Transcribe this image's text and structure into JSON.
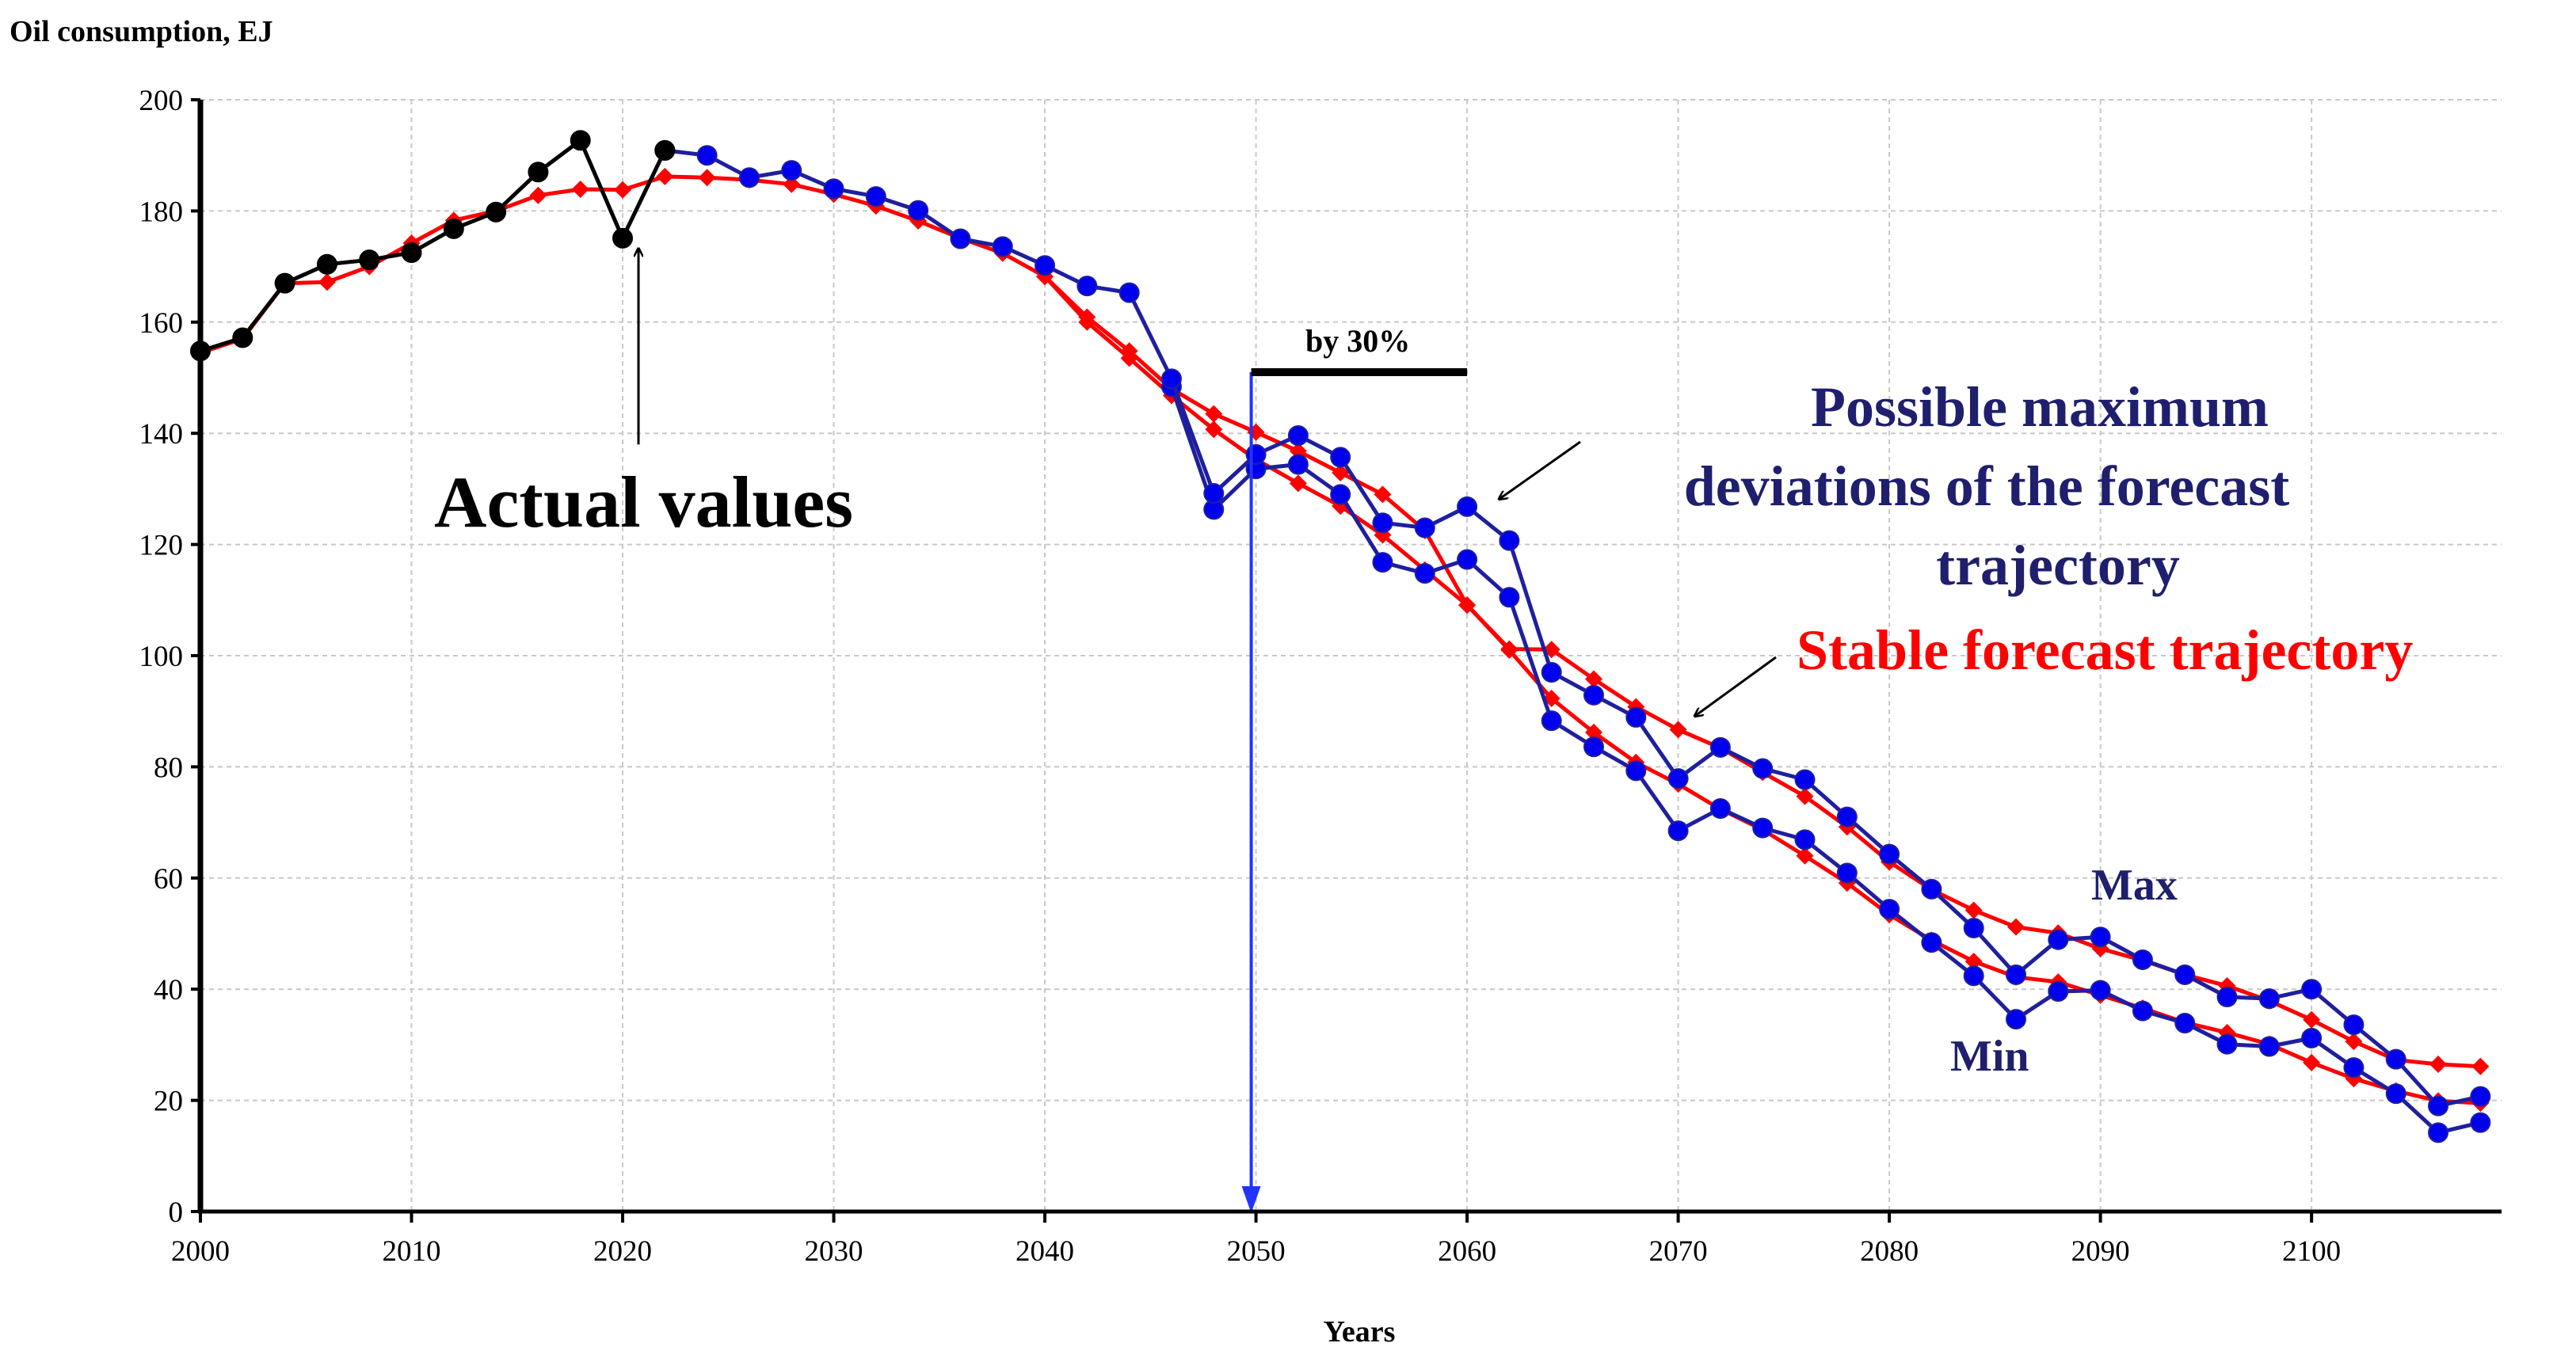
{
  "chart_data": {
    "type": "line",
    "title": "",
    "ylabel": "Oil consumption, EJ",
    "xlabel": "Years",
    "xlim": [
      2000,
      2109
    ],
    "ylim": [
      0,
      200
    ],
    "x_ticks": [
      2000,
      2010,
      2020,
      2030,
      2040,
      2050,
      2060,
      2070,
      2080,
      2090,
      2100
    ],
    "y_ticks": [
      0,
      20,
      40,
      60,
      80,
      100,
      120,
      140,
      160,
      180,
      200
    ],
    "grid": true,
    "colors": {
      "actual": "#000000",
      "max": "#1f1f9e",
      "min": "#1f1f9e",
      "stable_upper": "#ff0000",
      "stable_lower": "#ff0000",
      "marker_blue": "#0000ee",
      "marker_red": "#ff0000",
      "arrow_blue": "#2233ff",
      "annotation_navy": "#1f1f6e"
    },
    "series": [
      {
        "name": "Actual values",
        "key": "actual",
        "marker": "circle",
        "x": [
          2000,
          2002,
          2004,
          2006,
          2008,
          2010,
          2012,
          2014,
          2016,
          2018,
          2020,
          2022
        ],
        "values": [
          154.8,
          157.2,
          167.0,
          170.4,
          171.2,
          172.5,
          176.8,
          179.8,
          187.0,
          192.7,
          175.1,
          190.9
        ]
      },
      {
        "name": "Max",
        "key": "max",
        "marker": "circle",
        "x": [
          2022,
          2024,
          2026,
          2028,
          2030,
          2032,
          2034,
          2036,
          2038,
          2040,
          2042,
          2044,
          2046,
          2048,
          2050,
          2052,
          2054,
          2056,
          2058,
          2060,
          2062,
          2064,
          2066,
          2068,
          2070,
          2072,
          2074,
          2076,
          2078,
          2080,
          2082,
          2084,
          2086,
          2088,
          2090,
          2092,
          2094,
          2096,
          2098,
          2100,
          2102,
          2104,
          2106,
          2108
        ],
        "values": [
          190.9,
          190.0,
          186.0,
          187.3,
          184.0,
          182.6,
          180.1,
          175.0,
          173.6,
          170.2,
          166.5,
          165.3,
          149.8,
          129.2,
          136.2,
          139.6,
          135.7,
          123.9,
          123.0,
          126.8,
          120.7,
          97.0,
          92.9,
          88.9,
          77.9,
          83.5,
          79.7,
          77.7,
          71.0,
          64.3,
          58.0,
          51.0,
          42.6,
          48.9,
          49.4,
          45.3,
          42.6,
          38.6,
          38.3,
          40.0,
          33.6,
          27.4,
          19.0,
          20.7
        ]
      },
      {
        "name": "Min",
        "key": "min",
        "marker": "circle",
        "x": [
          2046,
          2048,
          2050,
          2052,
          2054,
          2056,
          2058,
          2060,
          2062,
          2064,
          2066,
          2068,
          2070,
          2072,
          2074,
          2076,
          2078,
          2080,
          2082,
          2084,
          2086,
          2088,
          2090,
          2092,
          2094,
          2096,
          2098,
          2100,
          2102,
          2104,
          2106,
          2108
        ],
        "values": [
          148.4,
          126.3,
          133.6,
          134.4,
          129.0,
          116.8,
          114.8,
          117.3,
          110.5,
          88.3,
          83.6,
          79.3,
          68.5,
          72.5,
          69.0,
          66.9,
          60.9,
          54.4,
          48.4,
          42.4,
          34.6,
          39.6,
          39.8,
          36.1,
          33.9,
          30.1,
          29.7,
          31.2,
          25.9,
          21.2,
          14.2,
          16.0
        ]
      },
      {
        "name": "Stable forecast trajectory (upper)",
        "key": "stable_upper",
        "marker": "diamond",
        "x": [
          2000,
          2002,
          2004,
          2006,
          2008,
          2010,
          2012,
          2014,
          2016,
          2018,
          2020,
          2022,
          2024,
          2026,
          2028,
          2030,
          2032,
          2034,
          2036,
          2038,
          2040,
          2042,
          2044,
          2046,
          2048,
          2050,
          2052,
          2054,
          2056,
          2058,
          2060,
          2062,
          2064,
          2066,
          2068,
          2070,
          2072,
          2074,
          2076,
          2078,
          2080,
          2082,
          2084,
          2086,
          2088,
          2090,
          2092,
          2094,
          2096,
          2098,
          2100,
          2102,
          2104,
          2106,
          2108
        ],
        "values": [
          154.5,
          157.0,
          167.0,
          167.2,
          170.0,
          174.2,
          178.3,
          180.0,
          182.8,
          183.9,
          183.8,
          186.2,
          186.0,
          185.6,
          184.8,
          183.0,
          180.9,
          178.2,
          175.1,
          172.4,
          168.2,
          160.9,
          154.8,
          148.0,
          143.5,
          140.2,
          136.8,
          132.9,
          129.0,
          122.5,
          109.1,
          101.2,
          101.1,
          95.8,
          90.8,
          86.7,
          83.4,
          79.0,
          74.7,
          69.2,
          62.9,
          57.9,
          54.2,
          51.2,
          50.1,
          47.3,
          45.2,
          42.6,
          40.6,
          37.9,
          34.5,
          30.6,
          27.3,
          26.5,
          26.1
        ]
      },
      {
        "name": "Stable forecast trajectory (lower)",
        "key": "stable_lower",
        "marker": "diamond",
        "x": [
          2040,
          2042,
          2044,
          2046,
          2048,
          2050,
          2052,
          2054,
          2056,
          2058,
          2060,
          2062,
          2064,
          2066,
          2068,
          2070,
          2072,
          2074,
          2076,
          2078,
          2080,
          2082,
          2084,
          2086,
          2088,
          2090,
          2092,
          2094,
          2096,
          2098,
          2100,
          2102,
          2104,
          2106,
          2108
        ],
        "values": [
          168.2,
          160.0,
          153.5,
          146.8,
          140.7,
          135.3,
          131.0,
          126.9,
          121.7,
          115.4,
          109.1,
          101.0,
          92.3,
          86.2,
          80.8,
          76.9,
          72.4,
          68.7,
          64.0,
          59.1,
          53.4,
          48.8,
          45.0,
          42.2,
          41.3,
          38.9,
          36.6,
          34.0,
          32.2,
          30.1,
          26.8,
          23.9,
          21.7,
          19.9,
          19.5
        ]
      }
    ],
    "annotations": {
      "actual_values": "Actual values",
      "by_30": "by 30%",
      "possible_max_line1": "Possible maximum",
      "possible_max_line2": "deviations of the forecast",
      "possible_max_line3": "trajectory",
      "stable_forecast": "Stable forecast trajectory",
      "max_label": "Max",
      "min_label": "Min",
      "actual_arrow_x": 2020,
      "actual_arrow_from_y": 138,
      "actual_arrow_to_y": 174,
      "forecast_start_year": 2050,
      "by30_bracket_x": [
        2050,
        2060
      ],
      "by30_bracket_y": 151
    }
  }
}
